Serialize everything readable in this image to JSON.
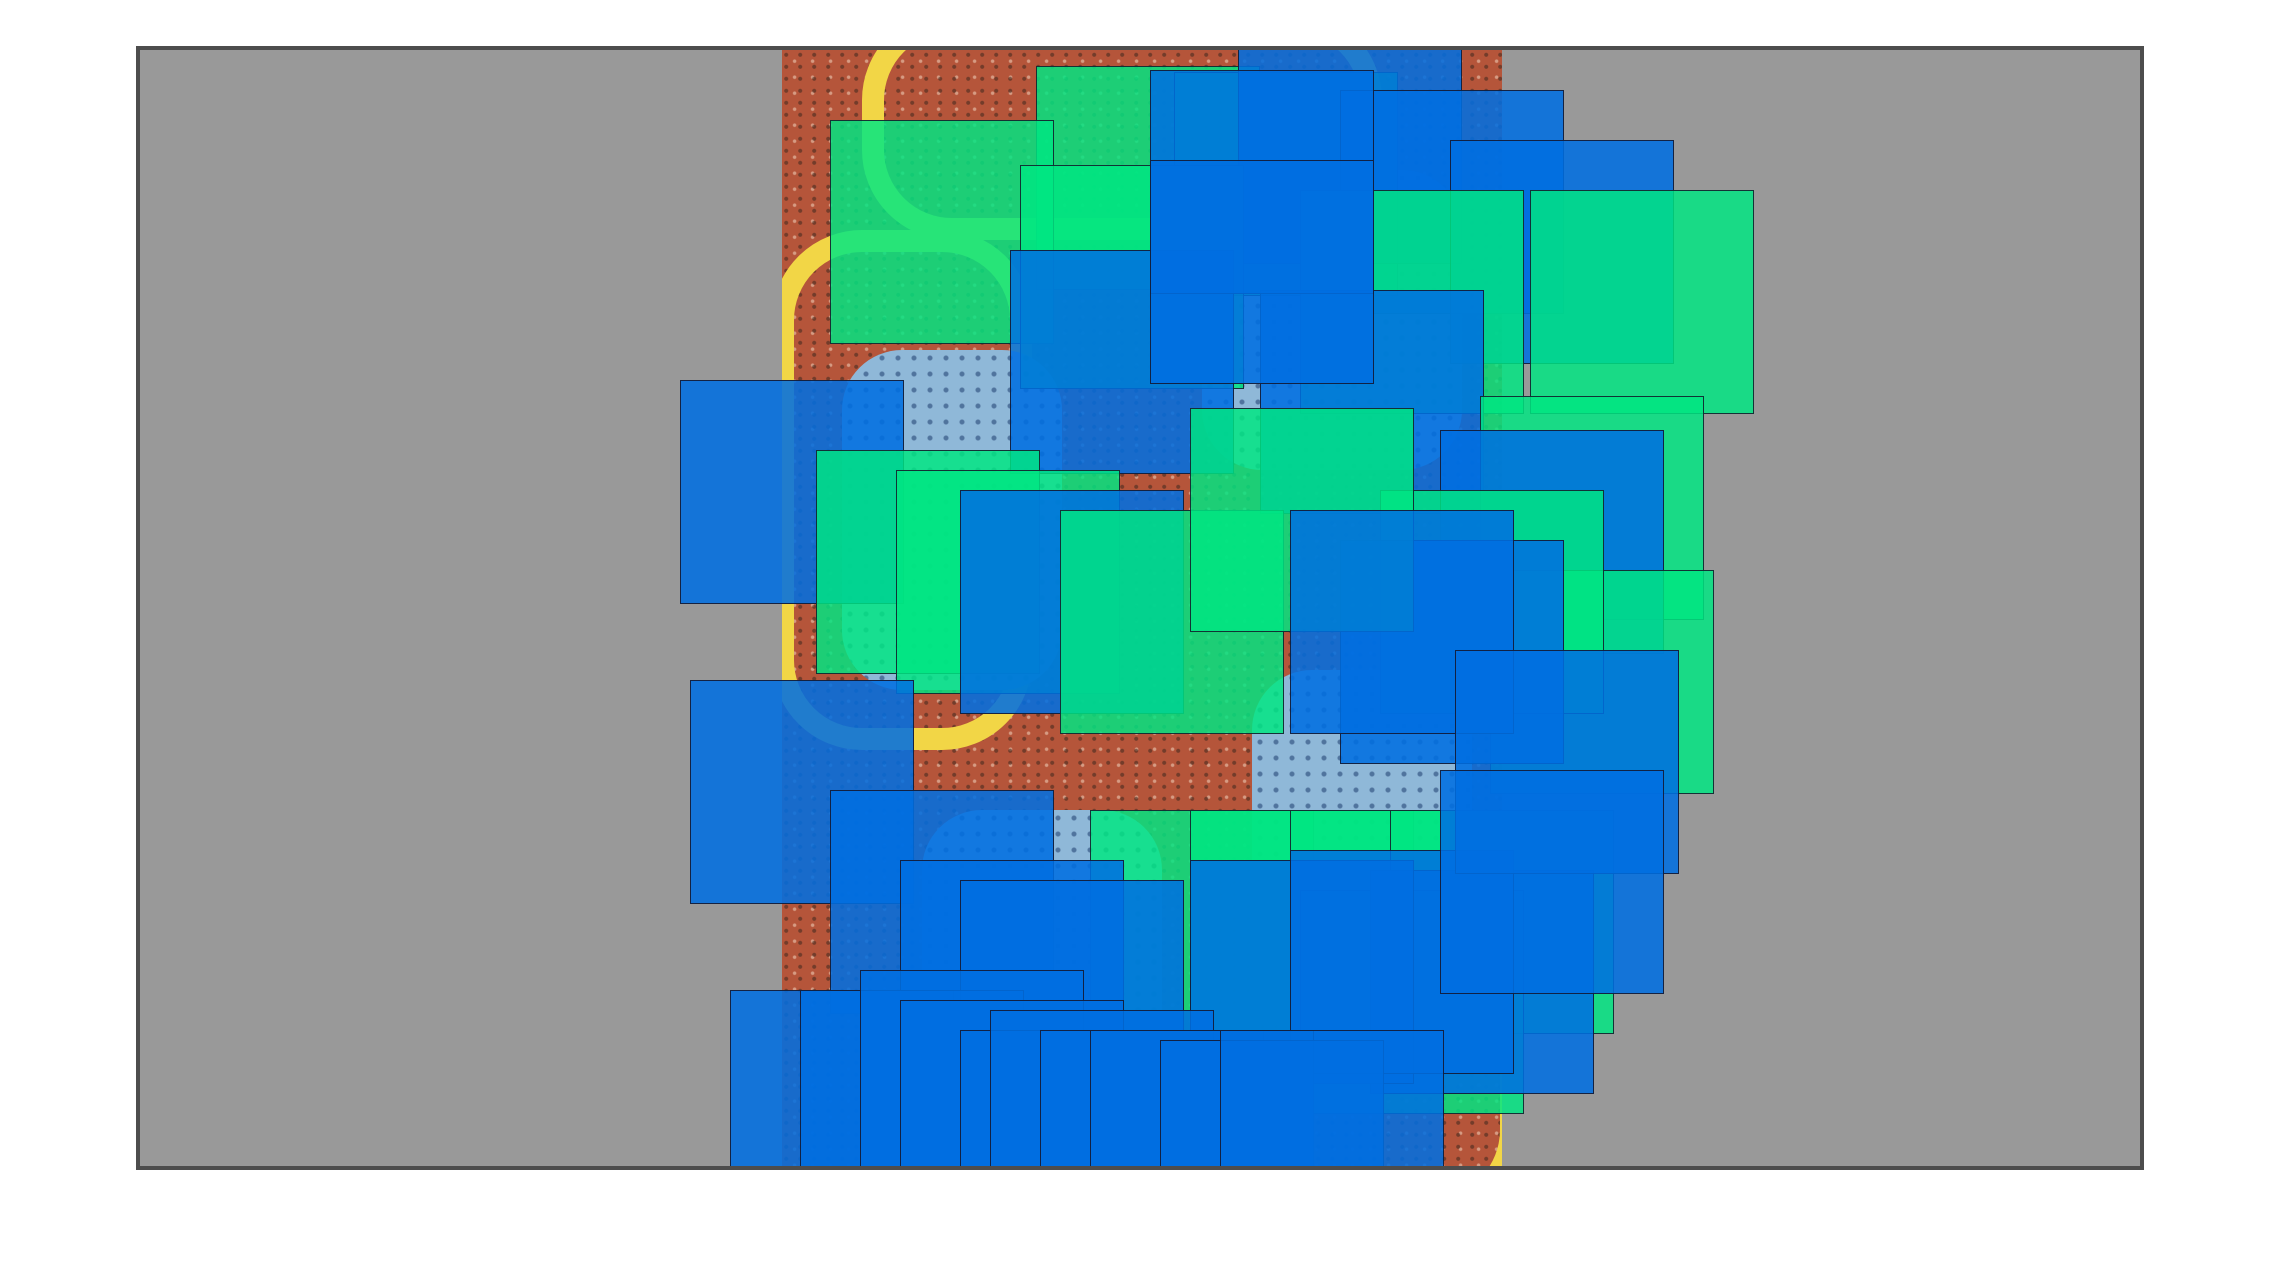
{
  "frame": {
    "background": "#999999",
    "border_color": "#4d4d4d"
  },
  "artwork": {
    "description_icon": "dot-painting-artwork",
    "base_color": "#b5553a",
    "accent_color": "#f2d646"
  },
  "squares": {
    "blue_color": "#006ee1",
    "green_color": "#00e682",
    "count_blue": 27,
    "count_green": 22
  }
}
